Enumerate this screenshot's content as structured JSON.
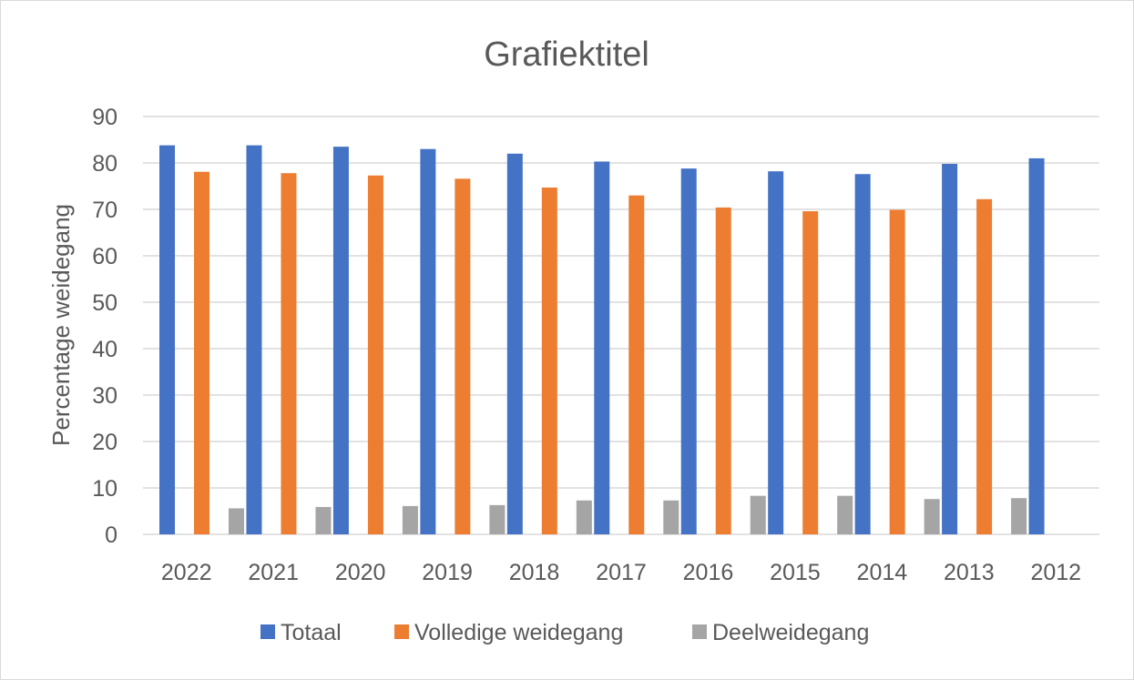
{
  "chart_data": {
    "type": "bar",
    "title": "Grafiektitel",
    "xlabel": "",
    "ylabel": "Percentage weidegang",
    "ylim": [
      0,
      90
    ],
    "yticks": [
      0,
      10,
      20,
      30,
      40,
      50,
      60,
      70,
      80,
      90
    ],
    "grid": true,
    "legend_position": "bottom",
    "categories": [
      "2022",
      "2021",
      "2020",
      "2019",
      "2018",
      "2017",
      "2016",
      "2015",
      "2014",
      "2013",
      "2012"
    ],
    "series": [
      {
        "name": "Totaal",
        "color": "#4472c4",
        "values": [
          83.8,
          83.8,
          83.5,
          83.0,
          82.0,
          80.3,
          78.8,
          78.2,
          77.6,
          79.8,
          81.0
        ]
      },
      {
        "name": "Volledige weidegang",
        "color": "#ed7d31",
        "values": [
          78.1,
          77.8,
          77.3,
          76.6,
          74.7,
          73.0,
          70.4,
          69.6,
          69.9,
          72.2,
          null
        ]
      },
      {
        "name": "Deelweidegang",
        "color": "#a5a5a5",
        "values": [
          5.6,
          5.9,
          6.1,
          6.3,
          7.3,
          7.3,
          8.3,
          8.3,
          7.6,
          7.8,
          null
        ]
      }
    ]
  }
}
